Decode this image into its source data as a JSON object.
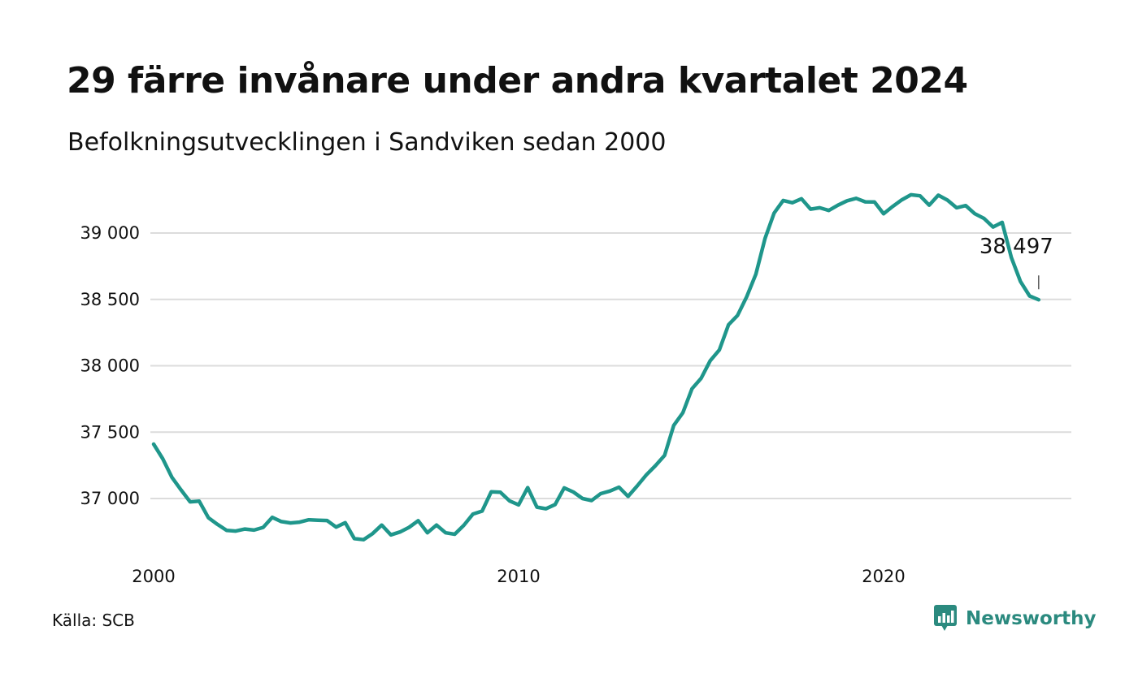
{
  "header": {
    "title": "29 färre invånare under andra kvartalet 2024",
    "subtitle": "Befolkningsutvecklingen i Sandviken sedan 2000"
  },
  "footer": {
    "source": "Källa: SCB",
    "brand": "Newsworthy",
    "brand_icon": "bar-chart-speech-bubble-icon"
  },
  "colors": {
    "line": "#1f968b",
    "grid": "#dcdcdc",
    "brand": "#2b8a7f"
  },
  "chart_data": {
    "type": "line",
    "title": "29 färre invånare under andra kvartalet 2024",
    "subtitle": "Befolkningsutvecklingen i Sandviken sedan 2000",
    "xlabel": "",
    "ylabel": "",
    "xlim": [
      2000,
      2024.5
    ],
    "ylim": [
      36600,
      39400
    ],
    "x_ticks": [
      2000,
      2010,
      2020
    ],
    "x_tick_labels": [
      "2000",
      "2010",
      "2020"
    ],
    "y_ticks": [
      37000,
      37500,
      38000,
      38500,
      39000
    ],
    "y_tick_labels": [
      "37 000",
      "37 500",
      "38 000",
      "38 500",
      "39 000"
    ],
    "grid": "horizontal",
    "legend": "none",
    "annotation": {
      "x": 2024.25,
      "y": 38497,
      "label": "38 497"
    },
    "series": [
      {
        "color": "#1f968b",
        "x": [
          2000.0,
          2000.25,
          2000.5,
          2000.75,
          2001.0,
          2001.25,
          2001.5,
          2001.75,
          2002.0,
          2002.25,
          2002.5,
          2002.75,
          2003.0,
          2003.25,
          2003.5,
          2003.75,
          2004.0,
          2004.25,
          2004.5,
          2004.75,
          2005.0,
          2005.25,
          2005.5,
          2005.75,
          2006.0,
          2006.25,
          2006.5,
          2006.75,
          2007.0,
          2007.25,
          2007.5,
          2007.75,
          2008.0,
          2008.25,
          2008.5,
          2008.75,
          2009.0,
          2009.25,
          2009.5,
          2009.75,
          2010.0,
          2010.25,
          2010.5,
          2010.75,
          2011.0,
          2011.25,
          2011.5,
          2011.75,
          2012.0,
          2012.25,
          2012.5,
          2012.75,
          2013.0,
          2013.25,
          2013.5,
          2013.75,
          2014.0,
          2014.25,
          2014.5,
          2014.75,
          2015.0,
          2015.25,
          2015.5,
          2015.75,
          2016.0,
          2016.25,
          2016.5,
          2016.75,
          2017.0,
          2017.25,
          2017.5,
          2017.75,
          2018.0,
          2018.25,
          2018.5,
          2018.75,
          2019.0,
          2019.25,
          2019.5,
          2019.75,
          2020.0,
          2020.25,
          2020.5,
          2020.75,
          2021.0,
          2021.25,
          2021.5,
          2021.75,
          2022.0,
          2022.25,
          2022.5,
          2022.75,
          2023.0,
          2023.25,
          2023.5,
          2023.75,
          2024.0,
          2024.25
        ],
        "values": [
          37410,
          37300,
          37160,
          37065,
          36975,
          36980,
          36855,
          36805,
          36760,
          36755,
          36770,
          36762,
          36782,
          36858,
          36826,
          36816,
          36822,
          36840,
          36837,
          36834,
          36785,
          36818,
          36698,
          36690,
          36736,
          36800,
          36726,
          36748,
          36783,
          36833,
          36742,
          36800,
          36742,
          36731,
          36798,
          36883,
          36905,
          37050,
          37048,
          36982,
          36952,
          37082,
          36935,
          36923,
          36955,
          37080,
          37049,
          37000,
          36985,
          37037,
          37056,
          37085,
          37016,
          37095,
          37178,
          37248,
          37325,
          37550,
          37645,
          37827,
          37905,
          38038,
          38120,
          38308,
          38380,
          38520,
          38690,
          38958,
          39150,
          39245,
          39228,
          39258,
          39180,
          39190,
          39170,
          39210,
          39243,
          39261,
          39235,
          39234,
          39145,
          39200,
          39250,
          39288,
          39280,
          39210,
          39285,
          39248,
          39190,
          39207,
          39145,
          39110,
          39045,
          39080,
          38815,
          38635,
          38526,
          38497
        ]
      }
    ]
  }
}
